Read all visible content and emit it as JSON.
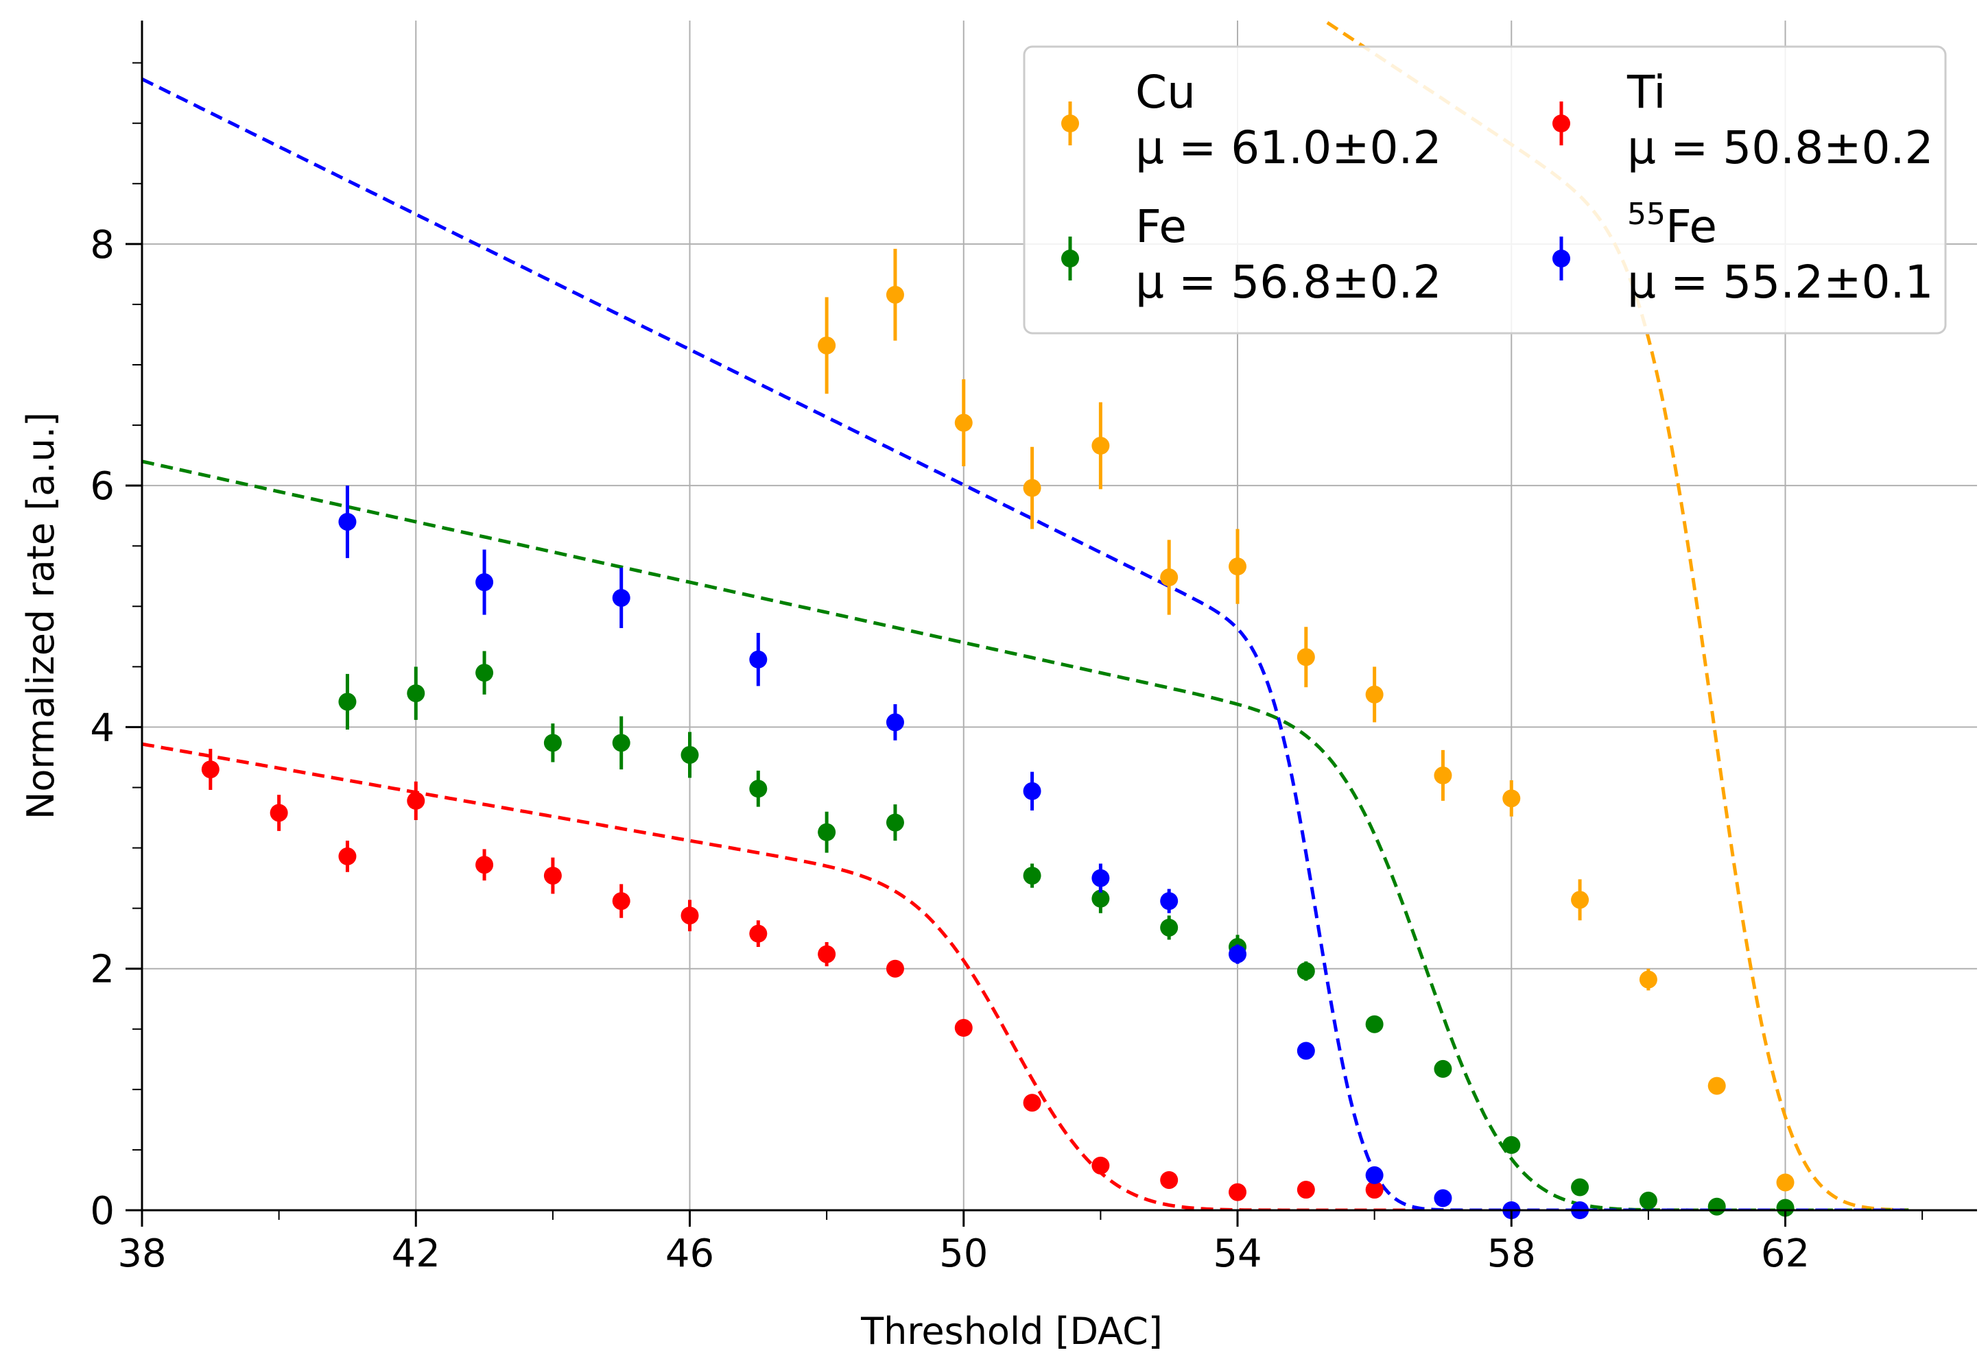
{
  "chart_data": {
    "type": "scatter",
    "title": "",
    "xlabel": "Threshold [DAC]",
    "ylabel": "Normalized rate [a.u.]",
    "xlim": [
      38,
      64.8
    ],
    "ylim": [
      0,
      9.85
    ],
    "xticks": [
      38,
      42,
      46,
      50,
      54,
      58,
      62
    ],
    "xtick_labels": [
      "38",
      "42",
      "46",
      "50",
      "54",
      "58",
      "62"
    ],
    "yticks": [
      0,
      2,
      4,
      6,
      8
    ],
    "ytick_labels": [
      "0",
      "2",
      "4",
      "6",
      "8"
    ],
    "x_minor_step": 2,
    "y_minor_step": 0.5,
    "grid": true,
    "legend_position": "top-right",
    "series": [
      {
        "name": "Cu",
        "legend_mu": "μ = 61.0±0.2",
        "color": "#ffa500",
        "x": [
          48,
          49,
          50,
          51,
          52,
          53,
          54,
          55,
          56,
          57,
          58,
          59,
          60,
          61,
          62
        ],
        "y": [
          7.16,
          7.58,
          6.52,
          5.98,
          6.33,
          5.24,
          5.33,
          4.58,
          4.27,
          3.6,
          3.41,
          2.57,
          1.91,
          1.03,
          0.23
        ],
        "err": [
          0.4,
          0.38,
          0.36,
          0.34,
          0.36,
          0.31,
          0.31,
          0.25,
          0.23,
          0.21,
          0.15,
          0.17,
          0.09,
          0.06,
          0.03
        ],
        "fit": {
          "mu": 61.0,
          "sigma": 0.8,
          "a": 7.7,
          "b": -0.375,
          "xstart": 38.0,
          "xend": 63.8
        }
      },
      {
        "name": "Fe",
        "legend_mu": "μ = 56.8±0.2",
        "color": "#008000",
        "x": [
          41,
          42,
          43,
          44,
          45,
          46,
          47,
          48,
          49,
          51,
          52,
          53,
          54,
          55,
          56,
          57,
          58,
          59,
          60,
          61,
          62
        ],
        "y": [
          4.21,
          4.28,
          4.45,
          3.87,
          3.87,
          3.77,
          3.49,
          3.13,
          3.21,
          2.77,
          2.58,
          2.34,
          2.18,
          1.98,
          1.54,
          1.17,
          0.54,
          0.19,
          0.08,
          0.03,
          0.02
        ],
        "err": [
          0.23,
          0.22,
          0.18,
          0.16,
          0.22,
          0.19,
          0.15,
          0.17,
          0.15,
          0.1,
          0.12,
          0.1,
          0.1,
          0.08,
          0.05,
          0.04,
          0.03,
          0.02,
          0.01,
          0.01,
          0.01
        ],
        "fit": {
          "mu": 56.8,
          "sigma": 1.0,
          "a": 3.85,
          "b": -0.125,
          "xstart": 38.0,
          "xend": 63.8
        }
      },
      {
        "name": "Ti",
        "legend_mu": "μ = 50.8±0.2",
        "color": "#ff0000",
        "x": [
          39,
          40,
          41,
          42,
          43,
          44,
          45,
          46,
          47,
          48,
          49,
          50,
          51,
          52,
          53,
          54,
          55,
          56
        ],
        "y": [
          3.65,
          3.29,
          2.93,
          3.39,
          2.86,
          2.77,
          2.56,
          2.44,
          2.29,
          2.12,
          2.0,
          1.51,
          0.89,
          0.37,
          0.25,
          0.15,
          0.17,
          0.17
        ],
        "err": [
          0.17,
          0.15,
          0.13,
          0.16,
          0.13,
          0.15,
          0.14,
          0.13,
          0.11,
          0.1,
          0.07,
          0.05,
          0.04,
          0.03,
          0.02,
          0.02,
          0.02,
          0.02
        ],
        "fit": {
          "mu": 50.8,
          "sigma": 1.05,
          "a": 2.58,
          "b": -0.1,
          "xstart": 38.0,
          "xend": 63.8
        }
      },
      {
        "name": "55Fe",
        "legend_sup": "55",
        "legend_base": "Fe",
        "legend_mu": "μ = 55.2±0.1",
        "color": "#0000ff",
        "x": [
          41,
          43,
          45,
          47,
          49,
          51,
          52,
          53,
          54,
          55,
          56,
          57,
          58,
          59
        ],
        "y": [
          5.7,
          5.2,
          5.07,
          4.56,
          4.04,
          3.47,
          2.75,
          2.56,
          2.12,
          1.32,
          0.29,
          0.1,
          0.0,
          0.0
        ],
        "err": [
          0.3,
          0.27,
          0.25,
          0.22,
          0.15,
          0.16,
          0.12,
          0.1,
          0.08,
          0.05,
          0.03,
          0.02,
          0.01,
          0.01
        ],
        "fit": {
          "mu": 55.2,
          "sigma": 0.55,
          "a": 4.55,
          "b": -0.28,
          "xstart": 38.0,
          "xend": 63.8
        }
      }
    ]
  }
}
